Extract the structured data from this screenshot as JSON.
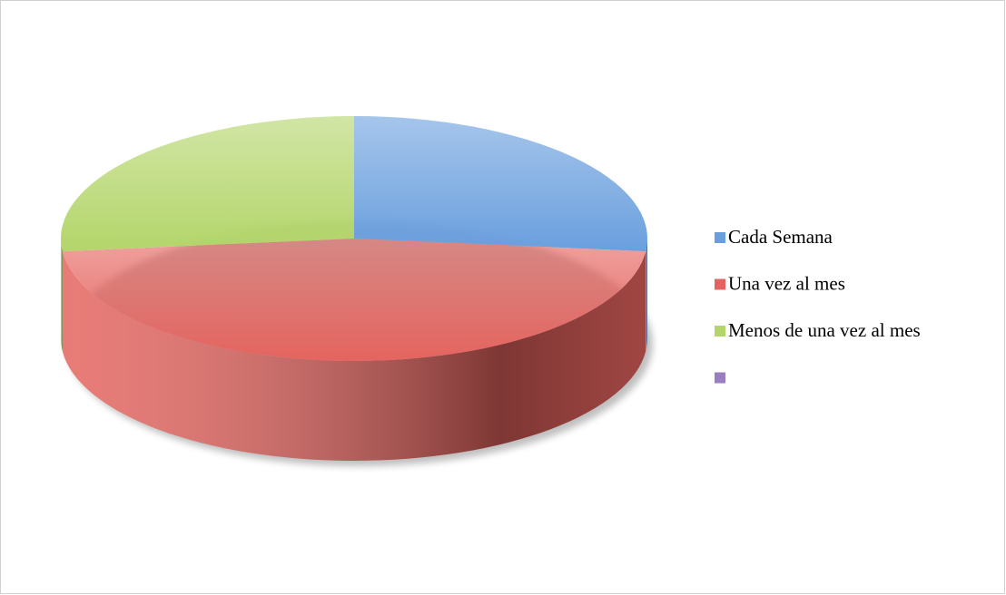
{
  "chart_data": {
    "type": "pie",
    "categories": [
      "Cada Semana",
      "Una vez al mes",
      "Menos de una vez al mes",
      null
    ],
    "values": [
      4,
      7,
      4,
      0
    ],
    "colors": [
      "#6a9fde",
      "#e5645f",
      "#b3d56a",
      "#9a7fc0"
    ],
    "legend": "right"
  }
}
